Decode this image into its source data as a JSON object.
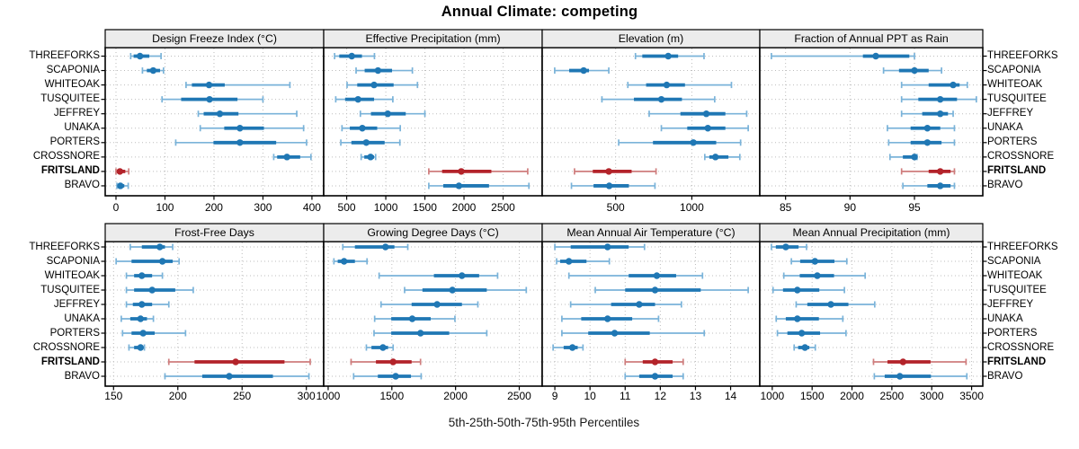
{
  "title": "Annual Climate: competing",
  "caption": "5th-25th-50th-75th-95th Percentiles",
  "sites": [
    "THREEFORKS",
    "SCAPONIA",
    "WHITEOAK",
    "TUSQUITEE",
    "JEFFREY",
    "UNAKA",
    "PORTERS",
    "CROSSNORE",
    "FRITSLAND",
    "BRAVO"
  ],
  "highlight_site": "FRITSLAND",
  "colors": {
    "blue": "#1f77b4",
    "blue_light": "#7ab3d9",
    "red": "#b3232a",
    "red_light": "#cf7d7d",
    "strip_bg": "#ececec",
    "grid": "#bdbdbd",
    "border": "#000000"
  },
  "chart_data": {
    "type": "dotplot-percentiles",
    "percentiles": [
      5,
      25,
      50,
      75,
      95
    ],
    "legend_note": "5th-25th-50th-75th-95th Percentiles",
    "grid": "dotted",
    "panels": [
      {
        "label": "Design Freeze Index (°C)",
        "row": 0,
        "col": 0,
        "ticks": [
          0,
          100,
          200,
          300,
          400
        ],
        "range": [
          -22,
          424
        ],
        "series": [
          [
            30,
            36,
            49,
            68,
            92
          ],
          [
            54,
            63,
            76,
            90,
            97
          ],
          [
            143,
            155,
            190,
            222,
            355
          ],
          [
            94,
            133,
            191,
            248,
            300
          ],
          [
            168,
            179,
            212,
            250,
            369
          ],
          [
            172,
            221,
            253,
            302,
            383
          ],
          [
            122,
            199,
            253,
            327,
            389
          ],
          [
            322,
            329,
            349,
            376,
            398
          ],
          [
            0,
            2,
            8,
            19,
            26
          ],
          [
            2,
            4,
            9,
            17,
            25
          ]
        ]
      },
      {
        "label": "Effective Precipitation (mm)",
        "row": 0,
        "col": 1,
        "ticks": [
          500,
          1000,
          1500,
          2000,
          2500
        ],
        "range": [
          206,
          3000
        ],
        "series": [
          [
            345,
            405,
            565,
            695,
            855
          ],
          [
            620,
            730,
            900,
            1080,
            1340
          ],
          [
            505,
            635,
            850,
            1100,
            1405
          ],
          [
            360,
            480,
            645,
            850,
            1090
          ],
          [
            675,
            810,
            1025,
            1255,
            1500
          ],
          [
            440,
            540,
            700,
            890,
            1185
          ],
          [
            425,
            560,
            750,
            985,
            1180
          ],
          [
            685,
            725,
            805,
            850,
            870
          ],
          [
            1550,
            1720,
            1965,
            2350,
            2815
          ],
          [
            1550,
            1735,
            1935,
            2320,
            2830
          ]
        ]
      },
      {
        "label": "Elevation (m)",
        "row": 0,
        "col": 2,
        "ticks": [
          500,
          1000
        ],
        "range": [
          18,
          1446
        ],
        "series": [
          [
            630,
            675,
            845,
            910,
            1080
          ],
          [
            100,
            195,
            290,
            325,
            455
          ],
          [
            580,
            700,
            835,
            955,
            1260
          ],
          [
            410,
            620,
            800,
            935,
            1150
          ],
          [
            720,
            925,
            1095,
            1220,
            1360
          ],
          [
            800,
            970,
            1105,
            1220,
            1370
          ],
          [
            520,
            745,
            1010,
            1160,
            1320
          ],
          [
            1085,
            1115,
            1155,
            1240,
            1315
          ],
          [
            230,
            350,
            455,
            605,
            765
          ],
          [
            210,
            355,
            458,
            587,
            758
          ]
        ]
      },
      {
        "label": "Fraction of Annual PPT as Rain",
        "row": 0,
        "col": 3,
        "ticks": [
          85,
          90,
          95
        ],
        "range": [
          83,
          100.3
        ],
        "series": [
          [
            83.9,
            91.0,
            92.0,
            94.6,
            95.0
          ],
          [
            92.6,
            93.8,
            95.0,
            96.1,
            97.1
          ],
          [
            94.0,
            96.1,
            98.0,
            98.5,
            99.1
          ],
          [
            94.0,
            95.3,
            97.0,
            98.3,
            99.8
          ],
          [
            94.0,
            95.6,
            97.0,
            97.6,
            98.0
          ],
          [
            92.9,
            94.7,
            96.0,
            97.0,
            98.1
          ],
          [
            93.0,
            94.7,
            96.0,
            97.1,
            98.1
          ],
          [
            93.1,
            94.1,
            95.0,
            95.1,
            95.2
          ],
          [
            94.0,
            96.1,
            97.0,
            97.8,
            98.1
          ],
          [
            94.1,
            96.0,
            97.0,
            97.8,
            98.1
          ]
        ]
      },
      {
        "label": "Frost-Free Days",
        "row": 1,
        "col": 0,
        "ticks": [
          150,
          200,
          250,
          300
        ],
        "range": [
          143.5,
          313.5
        ],
        "series": [
          [
            163,
            172,
            186,
            190,
            196
          ],
          [
            152,
            164,
            188,
            196,
            201
          ],
          [
            160,
            166,
            172,
            180,
            188
          ],
          [
            160,
            166,
            180,
            198,
            212
          ],
          [
            160,
            165,
            172,
            180,
            193
          ],
          [
            156,
            163,
            171,
            176,
            181
          ],
          [
            157,
            164,
            173,
            182,
            206
          ],
          [
            162,
            166,
            171,
            173,
            174
          ],
          [
            193,
            213,
            245,
            283,
            303
          ],
          [
            190,
            219,
            240,
            274,
            302
          ]
        ]
      },
      {
        "label": "Growing Degree Days (°C)",
        "row": 1,
        "col": 1,
        "ticks": [
          1000,
          1500,
          2000,
          2500
        ],
        "range": [
          965,
          2680
        ],
        "series": [
          [
            1115,
            1210,
            1450,
            1520,
            1625
          ],
          [
            1045,
            1075,
            1125,
            1210,
            1305
          ],
          [
            1400,
            1830,
            2050,
            2185,
            2330
          ],
          [
            1600,
            1740,
            1975,
            2245,
            2555
          ],
          [
            1415,
            1655,
            1855,
            2050,
            2175
          ],
          [
            1365,
            1495,
            1660,
            1805,
            1995
          ],
          [
            1360,
            1495,
            1725,
            1950,
            2245
          ],
          [
            1300,
            1340,
            1430,
            1470,
            1510
          ],
          [
            1180,
            1375,
            1510,
            1655,
            1725
          ],
          [
            1200,
            1390,
            1530,
            1650,
            1730
          ]
        ]
      },
      {
        "label": "Mean Annual Air Temperature (°C)",
        "row": 1,
        "col": 2,
        "ticks": [
          9,
          10,
          11,
          12,
          13,
          14
        ],
        "range": [
          8.64,
          14.83
        ],
        "series": [
          [
            9.0,
            9.45,
            10.5,
            11.1,
            11.55
          ],
          [
            9.05,
            9.15,
            9.4,
            9.9,
            10.55
          ],
          [
            9.4,
            11.1,
            11.9,
            12.45,
            13.2
          ],
          [
            10.15,
            11.0,
            11.85,
            13.15,
            14.5
          ],
          [
            9.45,
            10.6,
            11.4,
            11.85,
            12.6
          ],
          [
            9.2,
            9.75,
            10.5,
            11.2,
            11.95
          ],
          [
            9.2,
            9.95,
            10.7,
            11.7,
            13.25
          ],
          [
            8.95,
            9.25,
            9.5,
            9.65,
            9.8
          ],
          [
            11.0,
            11.5,
            11.85,
            12.35,
            12.65
          ],
          [
            11.0,
            11.4,
            11.85,
            12.35,
            12.65
          ]
        ]
      },
      {
        "label": "Mean Annual Precipitation (mm)",
        "row": 1,
        "col": 3,
        "ticks": [
          1000,
          1500,
          2000,
          2500,
          3000,
          3500
        ],
        "range": [
          844,
          3640
        ],
        "series": [
          [
            990,
            1045,
            1170,
            1330,
            1430
          ],
          [
            1240,
            1350,
            1535,
            1780,
            1935
          ],
          [
            1145,
            1345,
            1565,
            1775,
            2165
          ],
          [
            1010,
            1135,
            1315,
            1590,
            1905
          ],
          [
            1300,
            1440,
            1735,
            1955,
            2285
          ],
          [
            1050,
            1170,
            1315,
            1585,
            1885
          ],
          [
            1065,
            1190,
            1370,
            1600,
            1925
          ],
          [
            1275,
            1325,
            1410,
            1465,
            1540
          ],
          [
            2270,
            2445,
            2640,
            2985,
            3430
          ],
          [
            2280,
            2410,
            2600,
            2990,
            3440
          ]
        ]
      }
    ]
  }
}
